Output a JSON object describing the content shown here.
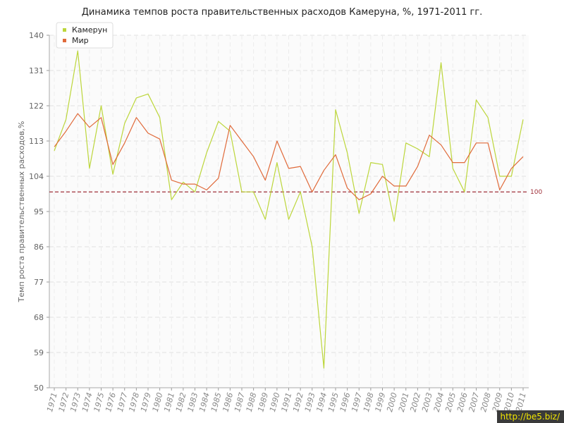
{
  "chart_data": {
    "type": "line",
    "title": "Динамика темпов роста правительственных расходов Камеруна, %, 1971-2011 гг.",
    "xlabel": "",
    "ylabel": "Темп роста правительственных расходов,%",
    "ylim": [
      50,
      140
    ],
    "yticks": [
      50,
      59,
      68,
      77,
      86,
      95,
      104,
      113,
      122,
      131,
      140
    ],
    "grid": true,
    "legend_position": "top-left",
    "reference_line": {
      "value": 100,
      "label": "100",
      "color": "#a0303a"
    },
    "x": [
      "1971",
      "1972",
      "1973",
      "1974",
      "1975",
      "1976",
      "1977",
      "1978",
      "1979",
      "1980",
      "1981",
      "1982",
      "1983",
      "1984",
      "1985",
      "1986",
      "1987",
      "1988",
      "1989",
      "1990",
      "1991",
      "1992",
      "1993",
      "1994",
      "1995",
      "1996",
      "1997",
      "1998",
      "1999",
      "2000",
      "2001",
      "2002",
      "2003",
      "2004",
      "2005",
      "2006",
      "2007",
      "2008",
      "2009",
      "2010",
      "2011"
    ],
    "series": [
      {
        "name": "Камерун",
        "color": "#bcd63a",
        "values": [
          110.5,
          118.5,
          136,
          106,
          122,
          104.5,
          117.5,
          124,
          125,
          119,
          98,
          102.5,
          100,
          110,
          118,
          115.5,
          100,
          100,
          93,
          107.5,
          93,
          100,
          86,
          55,
          121,
          110,
          94.5,
          107.5,
          107,
          92.5,
          112.5,
          111,
          109,
          133,
          106,
          100,
          123.5,
          119,
          104,
          104,
          118.5
        ]
      },
      {
        "name": "Мир",
        "color": "#e06a3a",
        "values": [
          111.5,
          115.5,
          120,
          116.5,
          119,
          107,
          112.5,
          119,
          115,
          113.5,
          103,
          102,
          102,
          100.5,
          103.5,
          117,
          113,
          109,
          103,
          113,
          106,
          106.5,
          100,
          105.5,
          109.5,
          101,
          98,
          99.5,
          104,
          101.5,
          101.5,
          106.5,
          114.5,
          112,
          107.5,
          107.5,
          112.5,
          112.5,
          100.5,
          106,
          109
        ]
      }
    ]
  },
  "watermark": "http://be5.biz/"
}
